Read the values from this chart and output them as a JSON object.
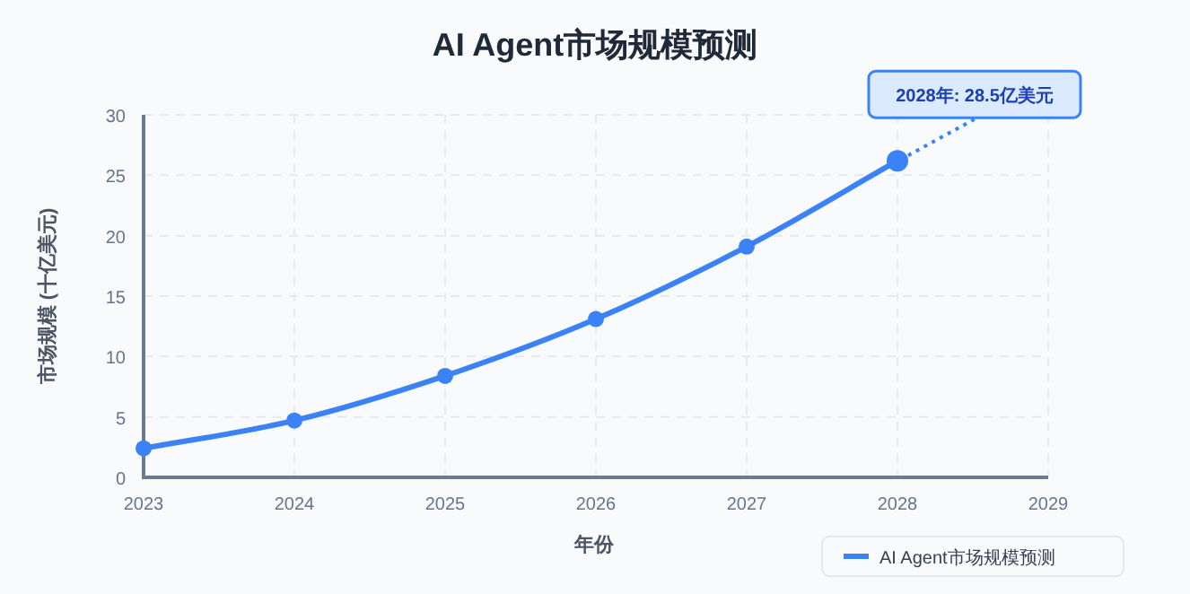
{
  "chart_data": {
    "type": "line",
    "title": "AI Agent市场规模预测",
    "xlabel": "年份",
    "ylabel": "市场规模 (十亿美元)",
    "x": [
      2023,
      2024,
      2025,
      2026,
      2027,
      2028
    ],
    "series": [
      {
        "name": "AI Agent市场规模预测",
        "color": "#3b82f6",
        "values": [
          2.4,
          4.7,
          8.4,
          13.1,
          19.1,
          26.2
        ]
      }
    ],
    "xlim": [
      2023,
      2029
    ],
    "xticks": [
      2023,
      2024,
      2025,
      2026,
      2027,
      2028,
      2029
    ],
    "ylim": [
      0,
      30
    ],
    "yticks": [
      0,
      5,
      10,
      15,
      20,
      25,
      30
    ],
    "annotations": [
      {
        "text": "2028年: 28.5亿美元",
        "x": 2028,
        "y": 26.2
      }
    ],
    "grid": true,
    "legend": "bottom right",
    "marker": "circle",
    "line_style": "solid"
  }
}
